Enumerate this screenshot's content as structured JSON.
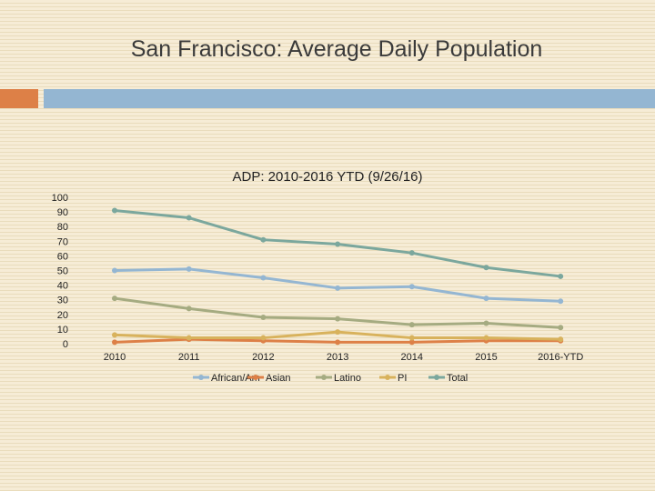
{
  "slide": {
    "title": "San Francisco: Average Daily Population",
    "accent_colors": {
      "orange": "#dd8047",
      "blue": "#94b6d2"
    }
  },
  "chart_data": {
    "type": "line",
    "title": "ADP: 2010-2016 YTD (9/26/16)",
    "categories": [
      "2010",
      "2011",
      "2012",
      "2013",
      "2014",
      "2015",
      "2016-YTD"
    ],
    "ylim": [
      0,
      100
    ],
    "yticks": [
      0,
      10,
      20,
      30,
      40,
      50,
      60,
      70,
      80,
      90,
      100
    ],
    "grid": false,
    "legend_position": "bottom",
    "series": [
      {
        "name": "African/Am",
        "color": "#94b6d2",
        "values": [
          50,
          51,
          45,
          38,
          39,
          31,
          29
        ]
      },
      {
        "name": "Asian",
        "color": "#dd8047",
        "values": [
          1,
          3,
          2,
          1,
          1,
          2,
          2
        ]
      },
      {
        "name": "Latino",
        "color": "#a5ab81",
        "values": [
          31,
          24,
          18,
          17,
          13,
          14,
          11
        ]
      },
      {
        "name": "PI",
        "color": "#d8b25c",
        "values": [
          6,
          4,
          4,
          8,
          4,
          4,
          3
        ]
      },
      {
        "name": "Total",
        "color": "#7ba79d",
        "values": [
          91,
          86,
          71,
          68,
          62,
          52,
          46
        ]
      }
    ]
  }
}
